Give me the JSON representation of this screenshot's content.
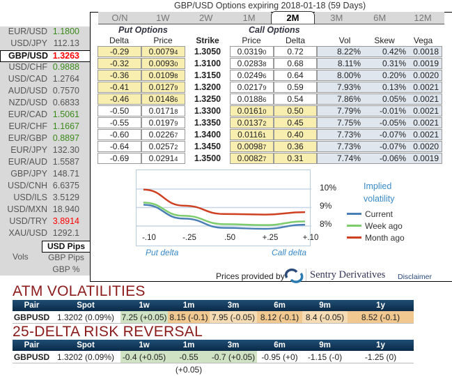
{
  "title": "GBP/USD Options expiring 2018-01-18 (59 Days)",
  "tabs": [
    "O/N",
    "1W",
    "2W",
    "1M",
    "2M",
    "3M",
    "6M",
    "12M"
  ],
  "active_tab": "2M",
  "pairs": [
    {
      "pair": "EUR/USD",
      "value": "1.1800",
      "color": "#3a8a1a"
    },
    {
      "pair": "USD/JPY",
      "value": "112.13",
      "color": "#555"
    },
    {
      "pair": "GBP/USD",
      "value": "1.3263",
      "color": "#ff0000"
    },
    {
      "pair": "USD/CHF",
      "value": "0.9888",
      "color": "#3a8a1a"
    },
    {
      "pair": "USD/CAD",
      "value": "1.2764",
      "color": "#555"
    },
    {
      "pair": "AUD/USD",
      "value": "0.7570",
      "color": "#555"
    },
    {
      "pair": "NZD/USD",
      "value": "0.6833",
      "color": "#555"
    },
    {
      "pair": "EUR/CAD",
      "value": "1.5061",
      "color": "#3a8a1a"
    },
    {
      "pair": "EUR/CHF",
      "value": "1.1667",
      "color": "#3a8a1a"
    },
    {
      "pair": "EUR/GBP",
      "value": "0.8897",
      "color": "#3a8a1a"
    },
    {
      "pair": "EUR/JPY",
      "value": "132.30",
      "color": "#555"
    },
    {
      "pair": "EUR/AUD",
      "value": "1.5587",
      "color": "#555"
    },
    {
      "pair": "GBP/JPY",
      "value": "148.71",
      "color": "#555"
    },
    {
      "pair": "USD/CNH",
      "value": "6.6375",
      "color": "#555"
    },
    {
      "pair": "USD/ILS",
      "value": "3.5129",
      "color": "#555"
    },
    {
      "pair": "USD/MXN",
      "value": "18.940",
      "color": "#555"
    },
    {
      "pair": "USD/TRY",
      "value": "3.8914",
      "color": "#ff0000"
    },
    {
      "pair": "XAU/USD",
      "value": "1292.1",
      "color": "#555"
    }
  ],
  "units": {
    "label": "Vols",
    "options": [
      "USD Pips",
      "GBP Pips",
      "GBP %"
    ],
    "selected": "USD Pips"
  },
  "headers": {
    "put": "Put Options",
    "call": "Call Options",
    "delta": "Delta",
    "price": "Price",
    "strike": "Strike",
    "vol": "Vol",
    "skew": "Skew",
    "vega": "Vega"
  },
  "rows": [
    {
      "pd": "-0.29",
      "pp": "0.0079",
      "pps": "4",
      "strike": "1.3050",
      "cp": "0.0319",
      "cps": "0",
      "cd": "0.72",
      "vol": "8.22%",
      "skew": "0.42%",
      "vega": "0.0018",
      "itm": "put"
    },
    {
      "pd": "-0.32",
      "pp": "0.0093",
      "pps": "0",
      "strike": "1.3100",
      "cp": "0.0283",
      "cps": "8",
      "cd": "0.68",
      "vol": "8.11%",
      "skew": "0.31%",
      "vega": "0.0019",
      "itm": "put"
    },
    {
      "pd": "-0.36",
      "pp": "0.0109",
      "pps": "8",
      "strike": "1.3150",
      "cp": "0.0249",
      "cps": "6",
      "cd": "0.64",
      "vol": "8.00%",
      "skew": "0.20%",
      "vega": "0.0020",
      "itm": "put"
    },
    {
      "pd": "-0.41",
      "pp": "0.0127",
      "pps": "9",
      "strike": "1.3200",
      "cp": "0.0217",
      "cps": "9",
      "cd": "0.59",
      "vol": "7.93%",
      "skew": "0.13%",
      "vega": "0.0021",
      "itm": "put"
    },
    {
      "pd": "-0.46",
      "pp": "0.0148",
      "pps": "6",
      "strike": "1.3250",
      "cp": "0.0188",
      "cps": "6",
      "cd": "0.54",
      "vol": "7.86%",
      "skew": "0.05%",
      "vega": "0.0021",
      "itm": "put"
    },
    {
      "pd": "-0.50",
      "pp": "0.0171",
      "pps": "8",
      "strike": "1.3300",
      "cp": "0.0161",
      "cps": "0",
      "cd": "0.50",
      "vol": "7.79%",
      "skew": "-0.01%",
      "vega": "0.0021",
      "itm": "call"
    },
    {
      "pd": "-0.55",
      "pp": "0.0197",
      "pps": "9",
      "strike": "1.3350",
      "cp": "0.0137",
      "cps": "2",
      "cd": "0.45",
      "vol": "7.75%",
      "skew": "-0.05%",
      "vega": "0.0021",
      "itm": "call"
    },
    {
      "pd": "-0.60",
      "pp": "0.0226",
      "pps": "7",
      "strike": "1.3400",
      "cp": "0.0116",
      "cps": "1",
      "cd": "0.40",
      "vol": "7.73%",
      "skew": "-0.07%",
      "vega": "0.0021",
      "itm": "call"
    },
    {
      "pd": "-0.64",
      "pp": "0.0257",
      "pps": "2",
      "strike": "1.3450",
      "cp": "0.0098",
      "cps": "7",
      "cd": "0.36",
      "vol": "7.73%",
      "skew": "-0.07%",
      "vega": "0.0020",
      "itm": "call"
    },
    {
      "pd": "-0.69",
      "pp": "0.0291",
      "pps": "4",
      "strike": "1.3500",
      "cp": "0.0082",
      "cps": "7",
      "cd": "0.31",
      "vol": "7.74%",
      "skew": "-0.06%",
      "vega": "0.0019",
      "itm": "call"
    }
  ],
  "chart_data": {
    "type": "line",
    "title": "Implied volatility",
    "categories": [
      "-.10",
      "-.25",
      ".50",
      "+.25",
      "+.10"
    ],
    "xlabel_left": "Put delta",
    "xlabel_right": "Call delta",
    "yticks": [
      "10%",
      "9%",
      "8%"
    ],
    "ylim": [
      7.6,
      10.4
    ],
    "series": [
      {
        "name": "Current",
        "color": "#4a7fb5",
        "values": [
          9.15,
          8.4,
          7.9,
          7.85,
          8.07
        ]
      },
      {
        "name": "Week ago",
        "color": "#7ccc6c",
        "values": [
          9.27,
          8.55,
          8.1,
          8.05,
          8.25
        ]
      },
      {
        "name": "Month ago",
        "color": "#cf4020",
        "values": [
          9.97,
          9.1,
          8.65,
          8.62,
          8.75
        ]
      }
    ]
  },
  "provider": {
    "text": "Prices provided by",
    "brand": "Sentry Derivatives",
    "disclaimer": "Disclaimer"
  },
  "atm": {
    "title": "ATM VOLATILITIES",
    "headers": [
      "Pair",
      "Spot",
      "1w",
      "1m",
      "3m",
      "6m",
      "9m",
      "1y"
    ],
    "row": [
      "GBPUSD",
      "1.3202 (0.09%)",
      "7.25 (+0.05)",
      "8.15 (-0.1)",
      "7.95 (-0.05)",
      "8.12 (-0.1)",
      "8.4 (-0.05)",
      "8.52 (-0.1)"
    ]
  },
  "rr": {
    "title": "25-DELTA RISK REVERSAL",
    "headers": [
      "Pair",
      "Spot",
      "1w",
      "1m",
      "3m",
      "6m",
      "9m",
      "1y"
    ],
    "row": [
      "GBPUSD",
      "1.3202 (0.09%)",
      "-0.4 (+0.05)",
      "-0.55 (+0.05)",
      "-0.7 (+0.05)",
      "-0.95 (+0)",
      "-1.15 (-0)",
      "-1.25 (0)"
    ]
  }
}
